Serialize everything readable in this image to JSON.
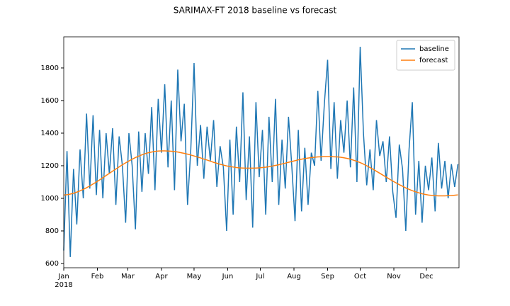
{
  "chart_data": {
    "type": "line",
    "title": "SARIMAX-FT 2018 baseline vs forecast",
    "x": [
      0,
      3,
      6,
      9,
      12,
      15,
      18,
      21,
      24,
      27,
      30,
      33,
      36,
      39,
      42,
      45,
      48,
      51,
      54,
      57,
      60,
      63,
      66,
      69,
      72,
      75,
      78,
      81,
      84,
      87,
      90,
      93,
      96,
      99,
      102,
      105,
      108,
      111,
      114,
      117,
      120,
      123,
      126,
      129,
      132,
      135,
      138,
      141,
      144,
      147,
      150,
      153,
      156,
      159,
      162,
      165,
      168,
      171,
      174,
      177,
      180,
      183,
      186,
      189,
      192,
      195,
      198,
      201,
      204,
      207,
      210,
      213,
      216,
      219,
      222,
      225,
      228,
      231,
      234,
      237,
      240,
      243,
      246,
      249,
      252,
      255,
      258,
      261,
      264,
      267,
      270,
      273,
      276,
      279,
      282,
      285,
      288,
      291,
      294,
      297,
      300,
      303,
      306,
      309,
      312,
      315,
      318,
      321,
      324,
      327,
      330,
      333,
      336,
      339,
      342,
      345,
      348,
      351,
      354,
      357,
      360,
      363
    ],
    "series": [
      {
        "name": "baseline",
        "color": "#1f77b4",
        "values": [
          680,
          1290,
          640,
          1180,
          840,
          1300,
          1000,
          1520,
          1060,
          1510,
          1020,
          1420,
          1000,
          1400,
          1150,
          1430,
          960,
          1380,
          1200,
          850,
          1400,
          1200,
          810,
          1410,
          1040,
          1400,
          1150,
          1560,
          1050,
          1610,
          1280,
          1700,
          1190,
          1600,
          1050,
          1790,
          1350,
          1580,
          960,
          1300,
          1830,
          1200,
          1450,
          1120,
          1440,
          1230,
          1480,
          1070,
          1320,
          1190,
          800,
          1360,
          900,
          1440,
          1100,
          1650,
          990,
          1380,
          820,
          1590,
          1130,
          1420,
          900,
          1500,
          1100,
          1610,
          960,
          1360,
          1060,
          1500,
          1200,
          860,
          1420,
          920,
          1310,
          960,
          1280,
          1200,
          1660,
          1230,
          1580,
          1850,
          1180,
          1590,
          1120,
          1480,
          1280,
          1600,
          1190,
          1680,
          1100,
          1930,
          1400,
          1080,
          1300,
          1050,
          1480,
          1260,
          1350,
          1100,
          1380,
          1040,
          880,
          1330,
          1180,
          800,
          1300,
          1590,
          900,
          1230,
          850,
          1200,
          1050,
          1250,
          920,
          1340,
          1060,
          1230,
          1000,
          1210,
          1070,
          1210
        ]
      },
      {
        "name": "forecast",
        "color": "#ff7f0e",
        "values": [
          1020,
          1022,
          1026,
          1031,
          1038,
          1046,
          1055,
          1065,
          1076,
          1088,
          1100,
          1113,
          1126,
          1140,
          1153,
          1167,
          1180,
          1193,
          1206,
          1218,
          1229,
          1240,
          1250,
          1259,
          1267,
          1274,
          1280,
          1284,
          1288,
          1290,
          1291,
          1291,
          1290,
          1289,
          1287,
          1284,
          1280,
          1276,
          1271,
          1266,
          1260,
          1254,
          1248,
          1241,
          1235,
          1228,
          1221,
          1215,
          1209,
          1204,
          1199,
          1195,
          1192,
          1189,
          1187,
          1186,
          1185,
          1185,
          1185,
          1186,
          1187,
          1189,
          1191,
          1194,
          1198,
          1202,
          1206,
          1211,
          1216,
          1221,
          1226,
          1231,
          1236,
          1240,
          1244,
          1247,
          1250,
          1252,
          1254,
          1255,
          1256,
          1256,
          1256,
          1255,
          1254,
          1252,
          1249,
          1245,
          1240,
          1234,
          1227,
          1219,
          1210,
          1200,
          1189,
          1178,
          1166,
          1154,
          1142,
          1130,
          1118,
          1106,
          1095,
          1084,
          1074,
          1064,
          1055,
          1047,
          1040,
          1034,
          1028,
          1024,
          1020,
          1018,
          1016,
          1015,
          1015,
          1015,
          1016,
          1017,
          1019,
          1021
        ]
      }
    ],
    "xlim": [
      0,
      364
    ],
    "xticks": [
      {
        "value": 0,
        "label": "Jan"
      },
      {
        "value": 31,
        "label": "Feb"
      },
      {
        "value": 59,
        "label": "Mar"
      },
      {
        "value": 90,
        "label": "Apr"
      },
      {
        "value": 120,
        "label": "May"
      },
      {
        "value": 151,
        "label": "Jun"
      },
      {
        "value": 181,
        "label": "Jul"
      },
      {
        "value": 212,
        "label": "Aug"
      },
      {
        "value": 243,
        "label": "Sep"
      },
      {
        "value": 273,
        "label": "Oct"
      },
      {
        "value": 304,
        "label": "Nov"
      },
      {
        "value": 334,
        "label": "Dec"
      }
    ],
    "x_year_label": "2018",
    "ylim": [
      574,
      1991
    ],
    "yticks": [
      600,
      800,
      1000,
      1200,
      1400,
      1600,
      1800
    ],
    "legend": "upper right",
    "grid": false
  }
}
